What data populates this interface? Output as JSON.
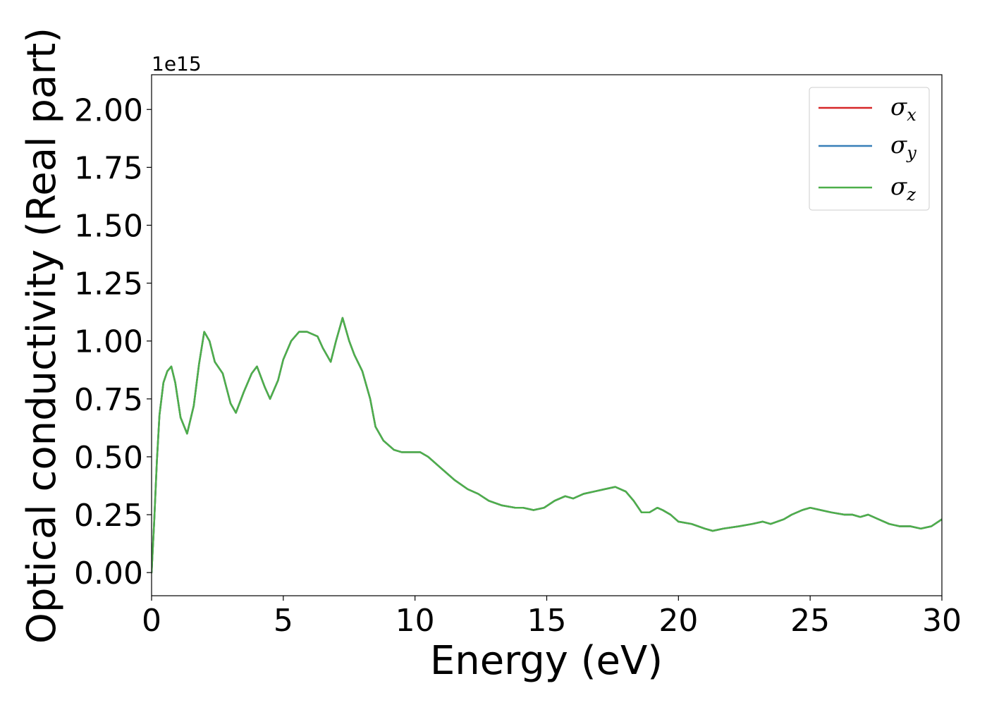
{
  "chart_data": {
    "type": "line",
    "xlabel": "Energy (eV)",
    "ylabel": "Optical conductivity (Real part)",
    "y_offset_text": "1e15",
    "y_scale": 1000000000000000.0,
    "xlim": [
      0,
      30
    ],
    "ylim": [
      -0.1,
      2.15
    ],
    "xticks": [
      0,
      5,
      10,
      15,
      20,
      25,
      30
    ],
    "xtick_labels": [
      "0",
      "5",
      "10",
      "15",
      "20",
      "25",
      "30"
    ],
    "yticks": [
      0.0,
      0.25,
      0.5,
      0.75,
      1.0,
      1.25,
      1.5,
      1.75,
      2.0
    ],
    "ytick_labels": [
      "0.00",
      "0.25",
      "0.50",
      "0.75",
      "1.00",
      "1.25",
      "1.50",
      "1.75",
      "2.00"
    ],
    "grid": false,
    "legend_position": "top-right",
    "x": [
      0,
      0.1,
      0.2,
      0.3,
      0.45,
      0.6,
      0.75,
      0.9,
      1.1,
      1.35,
      1.6,
      1.8,
      2.0,
      2.2,
      2.4,
      2.7,
      3.0,
      3.2,
      3.5,
      3.8,
      4.0,
      4.3,
      4.5,
      4.8,
      5.0,
      5.3,
      5.6,
      5.9,
      6.1,
      6.3,
      6.5,
      6.8,
      7.0,
      7.25,
      7.5,
      7.7,
      8.0,
      8.3,
      8.5,
      8.8,
      9.2,
      9.5,
      10.0,
      10.2,
      10.5,
      11.0,
      11.5,
      12.0,
      12.4,
      12.8,
      13.3,
      13.8,
      14.1,
      14.5,
      14.9,
      15.3,
      15.7,
      16.0,
      16.4,
      16.8,
      17.2,
      17.6,
      18.0,
      18.3,
      18.6,
      18.9,
      19.2,
      19.4,
      19.7,
      20.0,
      20.5,
      21.0,
      21.3,
      21.7,
      22.3,
      22.8,
      23.2,
      23.5,
      24.0,
      24.3,
      24.7,
      25.0,
      25.4,
      25.8,
      26.3,
      26.6,
      26.9,
      27.2,
      27.6,
      28.0,
      28.4,
      28.8,
      29.2,
      29.6,
      30.0
    ],
    "series": [
      {
        "name": "σx",
        "symbol": "σ",
        "subscript": "x",
        "color": "#d62728",
        "values": [
          0.0,
          0.22,
          0.48,
          0.68,
          0.82,
          0.87,
          0.89,
          0.82,
          0.67,
          0.6,
          0.72,
          0.9,
          1.04,
          1.0,
          0.91,
          0.86,
          0.73,
          0.69,
          0.78,
          0.86,
          0.89,
          0.8,
          0.75,
          0.83,
          0.92,
          1.0,
          1.04,
          1.04,
          1.03,
          1.02,
          0.97,
          0.91,
          1.0,
          1.1,
          1.0,
          0.94,
          0.87,
          0.75,
          0.63,
          0.57,
          0.53,
          0.52,
          0.52,
          0.52,
          0.5,
          0.45,
          0.4,
          0.36,
          0.34,
          0.31,
          0.29,
          0.28,
          0.28,
          0.27,
          0.28,
          0.31,
          0.33,
          0.32,
          0.34,
          0.35,
          0.36,
          0.37,
          0.35,
          0.31,
          0.26,
          0.26,
          0.28,
          0.27,
          0.25,
          0.22,
          0.21,
          0.19,
          0.18,
          0.19,
          0.2,
          0.21,
          0.22,
          0.21,
          0.23,
          0.25,
          0.27,
          0.28,
          0.27,
          0.26,
          0.25,
          0.25,
          0.24,
          0.25,
          0.23,
          0.21,
          0.2,
          0.2,
          0.19,
          0.2,
          0.23
        ]
      },
      {
        "name": "σy",
        "symbol": "σ",
        "subscript": "y",
        "color": "#377eb8",
        "values": [
          0.0,
          0.22,
          0.48,
          0.68,
          0.82,
          0.87,
          0.89,
          0.82,
          0.67,
          0.6,
          0.72,
          0.9,
          1.04,
          1.0,
          0.91,
          0.86,
          0.73,
          0.69,
          0.78,
          0.86,
          0.89,
          0.8,
          0.75,
          0.83,
          0.92,
          1.0,
          1.04,
          1.04,
          1.03,
          1.02,
          0.97,
          0.91,
          1.0,
          1.1,
          1.0,
          0.94,
          0.87,
          0.75,
          0.63,
          0.57,
          0.53,
          0.52,
          0.52,
          0.52,
          0.5,
          0.45,
          0.4,
          0.36,
          0.34,
          0.31,
          0.29,
          0.28,
          0.28,
          0.27,
          0.28,
          0.31,
          0.33,
          0.32,
          0.34,
          0.35,
          0.36,
          0.37,
          0.35,
          0.31,
          0.26,
          0.26,
          0.28,
          0.27,
          0.25,
          0.22,
          0.21,
          0.19,
          0.18,
          0.19,
          0.2,
          0.21,
          0.22,
          0.21,
          0.23,
          0.25,
          0.27,
          0.28,
          0.27,
          0.26,
          0.25,
          0.25,
          0.24,
          0.25,
          0.23,
          0.21,
          0.2,
          0.2,
          0.19,
          0.2,
          0.23
        ]
      },
      {
        "name": "σz",
        "symbol": "σ",
        "subscript": "z",
        "color": "#4daf4a",
        "values": [
          0.0,
          0.22,
          0.48,
          0.68,
          0.82,
          0.87,
          0.89,
          0.82,
          0.67,
          0.6,
          0.72,
          0.9,
          1.04,
          1.0,
          0.91,
          0.86,
          0.73,
          0.69,
          0.78,
          0.86,
          0.89,
          0.8,
          0.75,
          0.83,
          0.92,
          1.0,
          1.04,
          1.04,
          1.03,
          1.02,
          0.97,
          0.91,
          1.0,
          1.1,
          1.0,
          0.94,
          0.87,
          0.75,
          0.63,
          0.57,
          0.53,
          0.52,
          0.52,
          0.52,
          0.5,
          0.45,
          0.4,
          0.36,
          0.34,
          0.31,
          0.29,
          0.28,
          0.28,
          0.27,
          0.28,
          0.31,
          0.33,
          0.32,
          0.34,
          0.35,
          0.36,
          0.37,
          0.35,
          0.31,
          0.26,
          0.26,
          0.28,
          0.27,
          0.25,
          0.22,
          0.21,
          0.19,
          0.18,
          0.19,
          0.2,
          0.21,
          0.22,
          0.21,
          0.23,
          0.25,
          0.27,
          0.28,
          0.27,
          0.26,
          0.25,
          0.25,
          0.24,
          0.25,
          0.23,
          0.21,
          0.2,
          0.2,
          0.19,
          0.2,
          0.23
        ]
      }
    ]
  }
}
